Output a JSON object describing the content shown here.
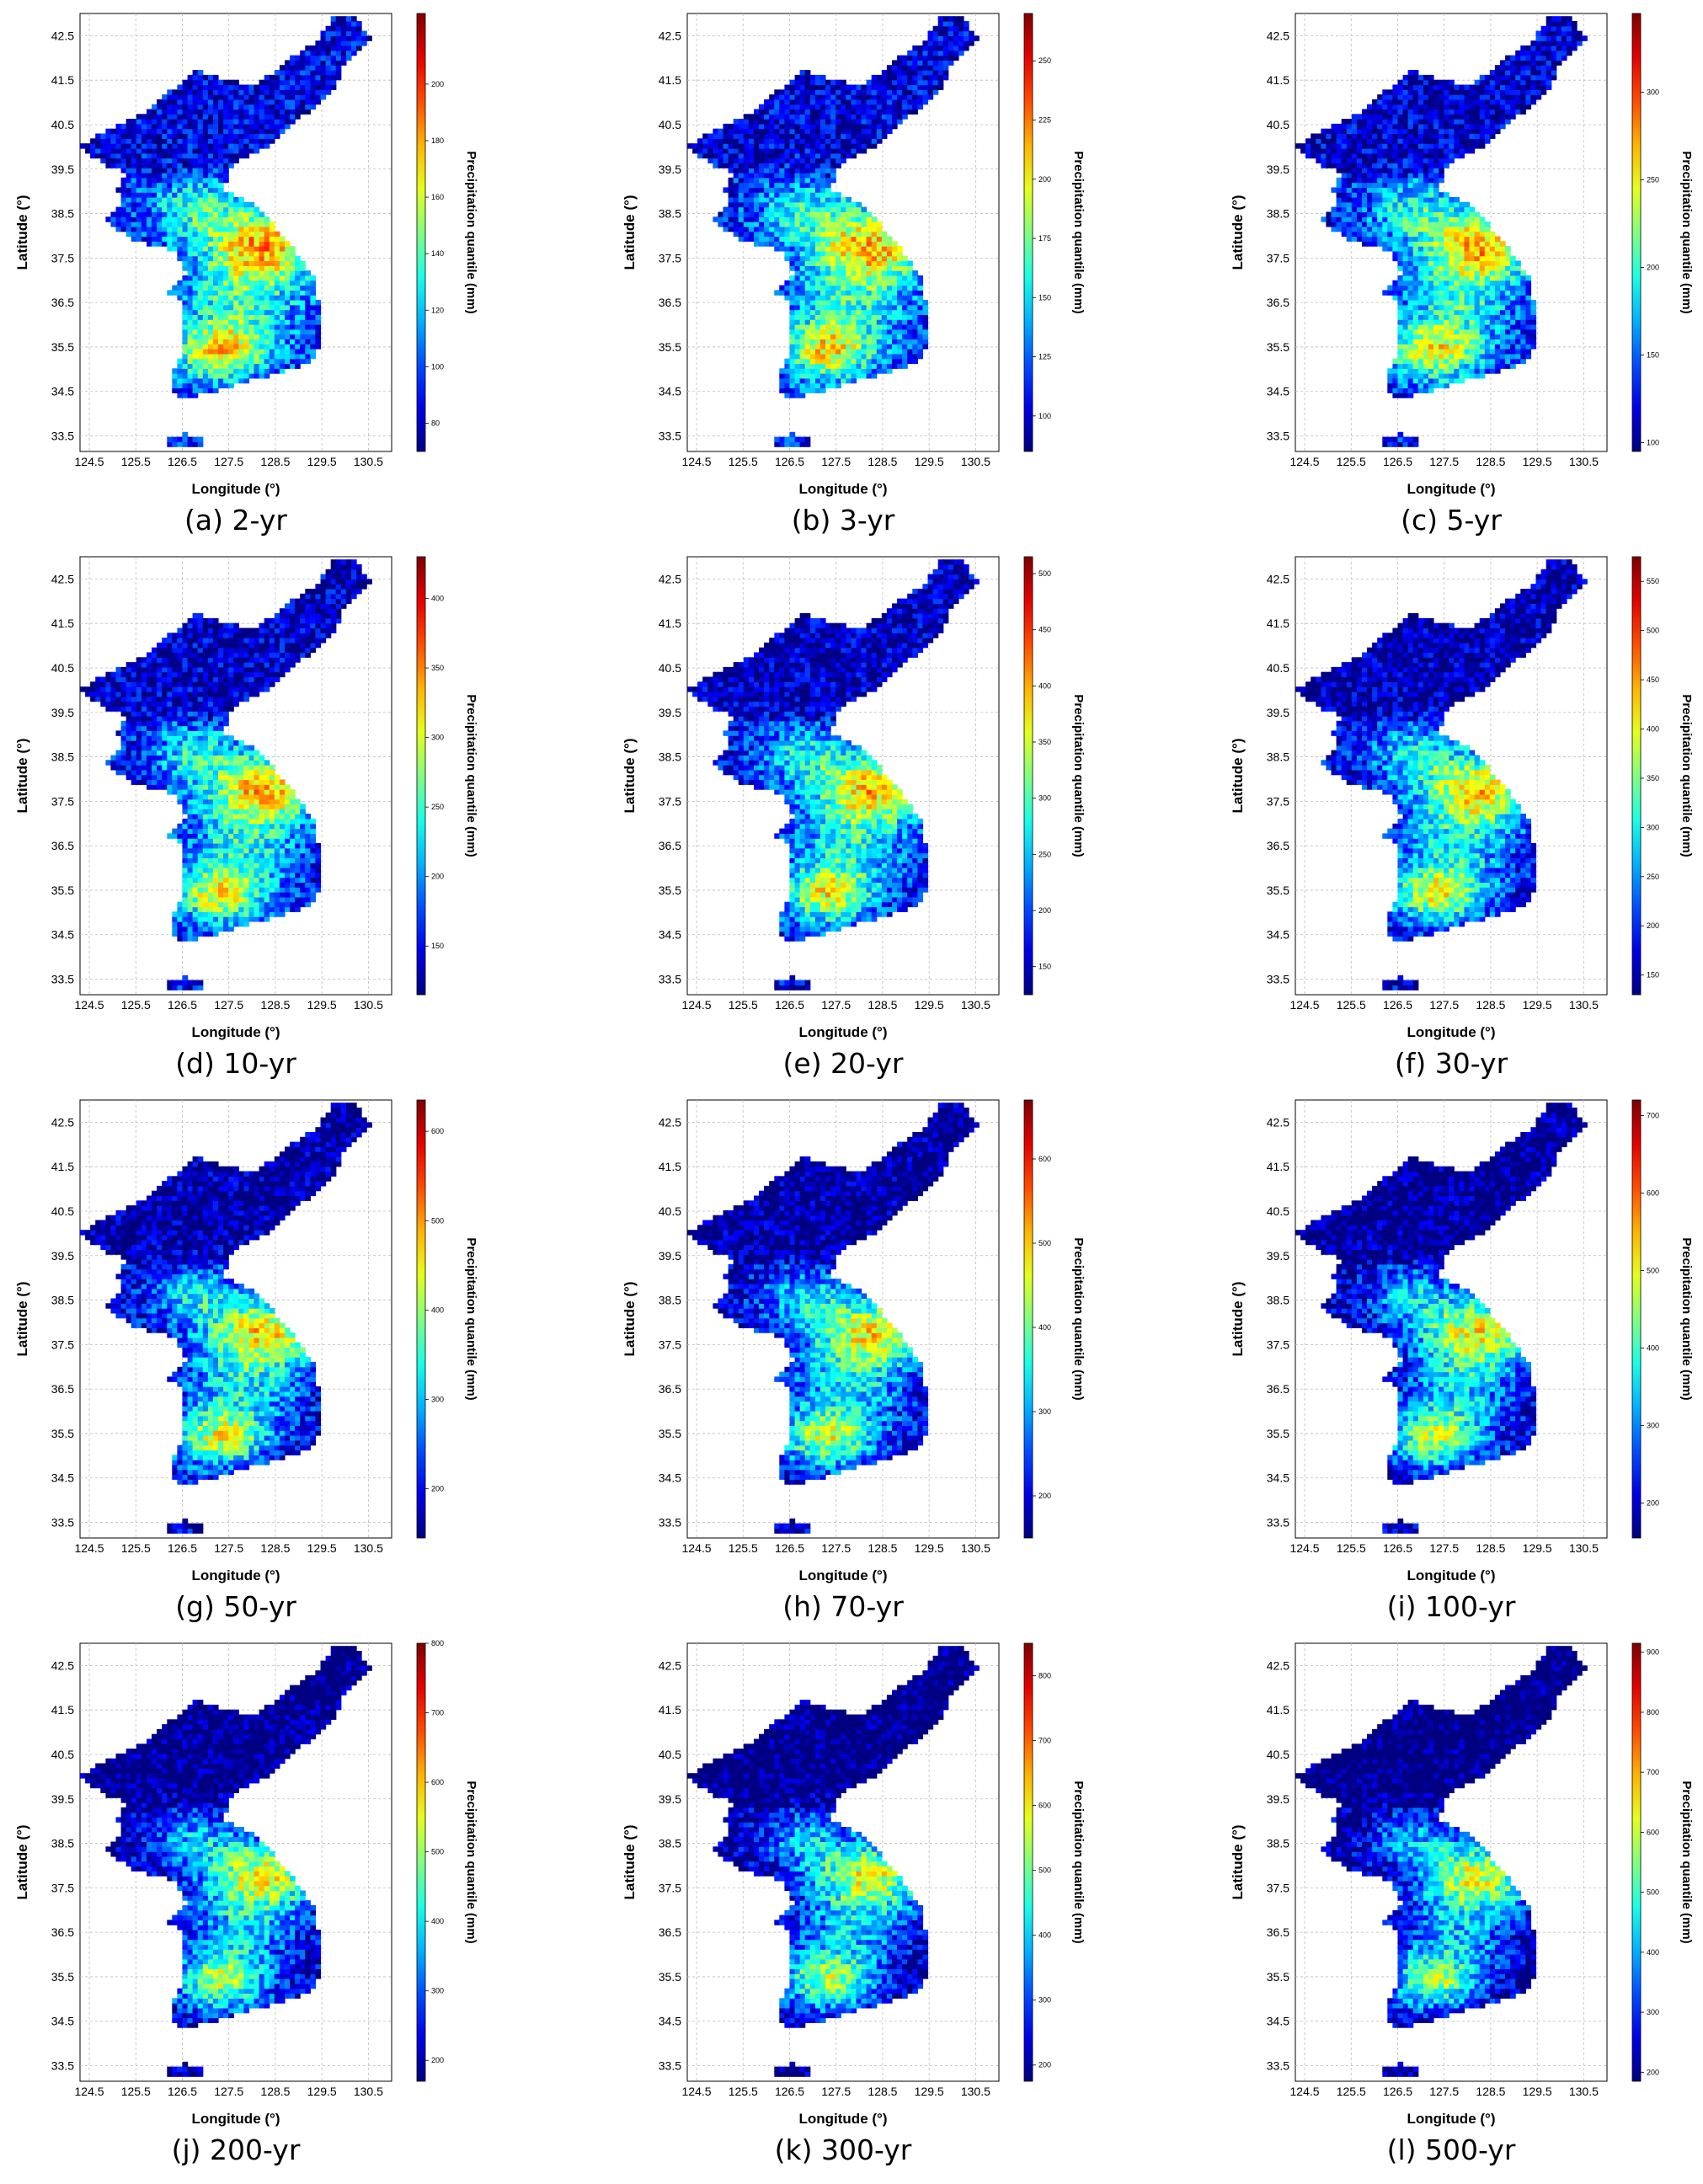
{
  "figure": {
    "panels": [
      {
        "caption": "(a) 2-yr",
        "cb_ticks": [
          80,
          100,
          120,
          140,
          160,
          180,
          200
        ],
        "cb_range": [
          70,
          225
        ]
      },
      {
        "caption": "(b) 3-yr",
        "cb_ticks": [
          100,
          125,
          150,
          175,
          200,
          225,
          250
        ],
        "cb_range": [
          85,
          270
        ]
      },
      {
        "caption": "(c) 5-yr",
        "cb_ticks": [
          100,
          150,
          200,
          250,
          300
        ],
        "cb_range": [
          95,
          345
        ]
      },
      {
        "caption": "(d) 10-yr",
        "cb_ticks": [
          150,
          200,
          250,
          300,
          350,
          400
        ],
        "cb_range": [
          115,
          430
        ]
      },
      {
        "caption": "(e) 20-yr",
        "cb_ticks": [
          150,
          200,
          250,
          300,
          350,
          400,
          450,
          500
        ],
        "cb_range": [
          125,
          515
        ]
      },
      {
        "caption": "(f) 30-yr",
        "cb_ticks": [
          150,
          200,
          250,
          300,
          350,
          400,
          450,
          500,
          550
        ],
        "cb_range": [
          130,
          575
        ]
      },
      {
        "caption": "(g) 50-yr",
        "cb_ticks": [
          200,
          300,
          400,
          500,
          600
        ],
        "cb_range": [
          145,
          635
        ]
      },
      {
        "caption": "(h) 70-yr",
        "cb_ticks": [
          200,
          300,
          400,
          500,
          600
        ],
        "cb_range": [
          150,
          670
        ]
      },
      {
        "caption": "(i) 100-yr",
        "cb_ticks": [
          200,
          300,
          400,
          500,
          600,
          700
        ],
        "cb_range": [
          155,
          720
        ]
      },
      {
        "caption": "(j) 200-yr",
        "cb_ticks": [
          200,
          300,
          400,
          500,
          600,
          700,
          800
        ],
        "cb_range": [
          170,
          800
        ]
      },
      {
        "caption": "(k) 300-yr",
        "cb_ticks": [
          200,
          300,
          400,
          500,
          600,
          700,
          800
        ],
        "cb_range": [
          175,
          850
        ]
      },
      {
        "caption": "(l) 500-yr",
        "cb_ticks": [
          200,
          300,
          400,
          500,
          600,
          700,
          800,
          900
        ],
        "cb_range": [
          185,
          915
        ]
      }
    ]
  },
  "chart_data": {
    "type": "heatmap",
    "xlabel": "Longitude (°)",
    "ylabel": "Latitude (°)",
    "colorbar_label": "Precipitation quantile (mm)",
    "colormap": "jet",
    "x_ticks": [
      "124.5",
      "125.5",
      "126.5",
      "127.5",
      "128.5",
      "129.5",
      "130.5"
    ],
    "y_ticks": [
      "42.5",
      "41.5",
      "40.5",
      "39.5",
      "38.5",
      "37.5",
      "36.5",
      "35.5",
      "34.5",
      "33.5"
    ],
    "xlim": [
      124.3,
      131.0
    ],
    "ylim": [
      33.15,
      43.0
    ],
    "grid": true,
    "colors": {
      "jet_low": "#00008f",
      "jet_blue": "#0000ff",
      "jet_cyan": "#00ffff",
      "jet_yellow": "#ffff00",
      "jet_red": "#ff0000",
      "jet_high": "#800000"
    }
  }
}
